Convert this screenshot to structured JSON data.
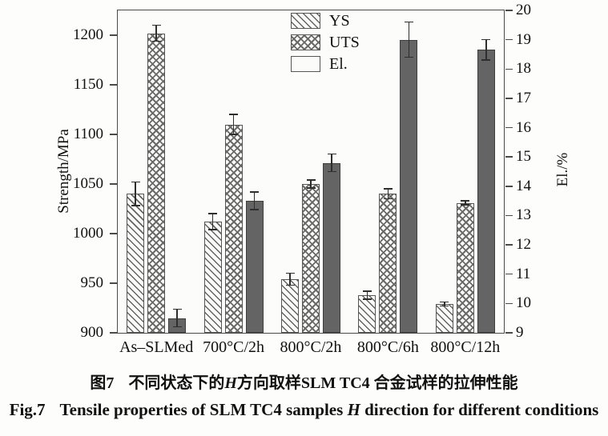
{
  "figure": {
    "caption_zh_prefix": "图7",
    "caption_zh_a": "不同状态下的",
    "caption_zh_italic": "H",
    "caption_zh_b": "方向取样SLM TC4 合金试样的拉伸性能",
    "caption_en_prefix": "Fig.7",
    "caption_en_a": "Tensile properties of SLM TC4 samples ",
    "caption_en_italic": "H",
    "caption_en_b": " direction for different conditions"
  },
  "chart_data": {
    "type": "bar",
    "title": "",
    "categories": [
      "As–SLMed",
      "700°C/2h",
      "800°C/2h",
      "800°C/6h",
      "800°C/12h"
    ],
    "series": [
      {
        "name": "YS",
        "axis": "left",
        "pattern": "diagonal-hatch",
        "unit": "MPa",
        "values": [
          1040,
          1012,
          954,
          938,
          929
        ],
        "errors": [
          12,
          8,
          6,
          4,
          2
        ]
      },
      {
        "name": "UTS",
        "axis": "left",
        "pattern": "cross-hatch",
        "unit": "MPa",
        "values": [
          1202,
          1110,
          1050,
          1040,
          1031
        ],
        "errors": [
          8,
          10,
          4,
          5,
          2
        ]
      },
      {
        "name": "El.",
        "axis": "right",
        "pattern": "solid-gray",
        "unit": "%",
        "values": [
          9.5,
          13.5,
          14.8,
          19.0,
          18.65
        ],
        "errors": [
          0.3,
          0.3,
          0.3,
          0.6,
          0.35
        ]
      }
    ],
    "left_axis": {
      "label": "Strength/MPa",
      "min": 900,
      "max": 1225,
      "ticks": [
        900,
        950,
        1000,
        1050,
        1100,
        1150,
        1200
      ]
    },
    "right_axis": {
      "label": "El./%",
      "min": 9,
      "max": 20,
      "ticks": [
        9,
        10,
        11,
        12,
        13,
        14,
        15,
        16,
        17,
        18,
        19,
        20
      ]
    },
    "legend": {
      "position": "top-inside",
      "items": [
        "YS",
        "UTS",
        "El."
      ]
    },
    "grid": false,
    "colors": {
      "hatch_stroke": "#646464",
      "el_fill": "#646464",
      "axis": "#4a4a4a",
      "error_bar": "#2e2e2e",
      "background": "#fcfcfb"
    }
  }
}
